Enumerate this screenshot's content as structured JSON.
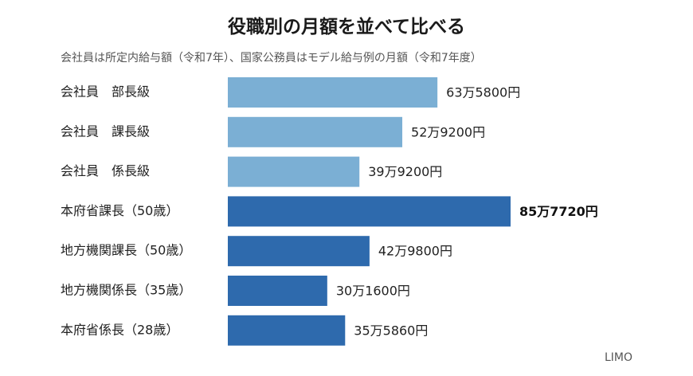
{
  "chart_data": {
    "type": "bar",
    "orientation": "horizontal",
    "title": "役職別の月額を並べて比べる",
    "subtitle": "会社員は所定内給与額（令和7年）、国家公務員はモデル給与例の月額（令和7年度）",
    "categories": [
      "会社員　部長級",
      "会社員　課長級",
      "会社員　係長級",
      "本府省課長（50歳）",
      "地方機関課長（50歳）",
      "地方機関係長（35歳）",
      "本府省係長（28歳）"
    ],
    "values": [
      635800,
      529200,
      399200,
      857720,
      429800,
      301600,
      355860
    ],
    "value_labels": [
      "63万5800円",
      "52万9200円",
      "39万9200円",
      "85万7720円",
      "42万9800円",
      "30万1600円",
      "35万5860円"
    ],
    "bar_colors": [
      "#7bafd4",
      "#7bafd4",
      "#7bafd4",
      "#2e6aad",
      "#2e6aad",
      "#2e6aad",
      "#2e6aad"
    ],
    "highlight_index": 3,
    "xlim": [
      0,
      857720
    ],
    "grid": false,
    "legend": "none"
  },
  "source": "LIMO"
}
